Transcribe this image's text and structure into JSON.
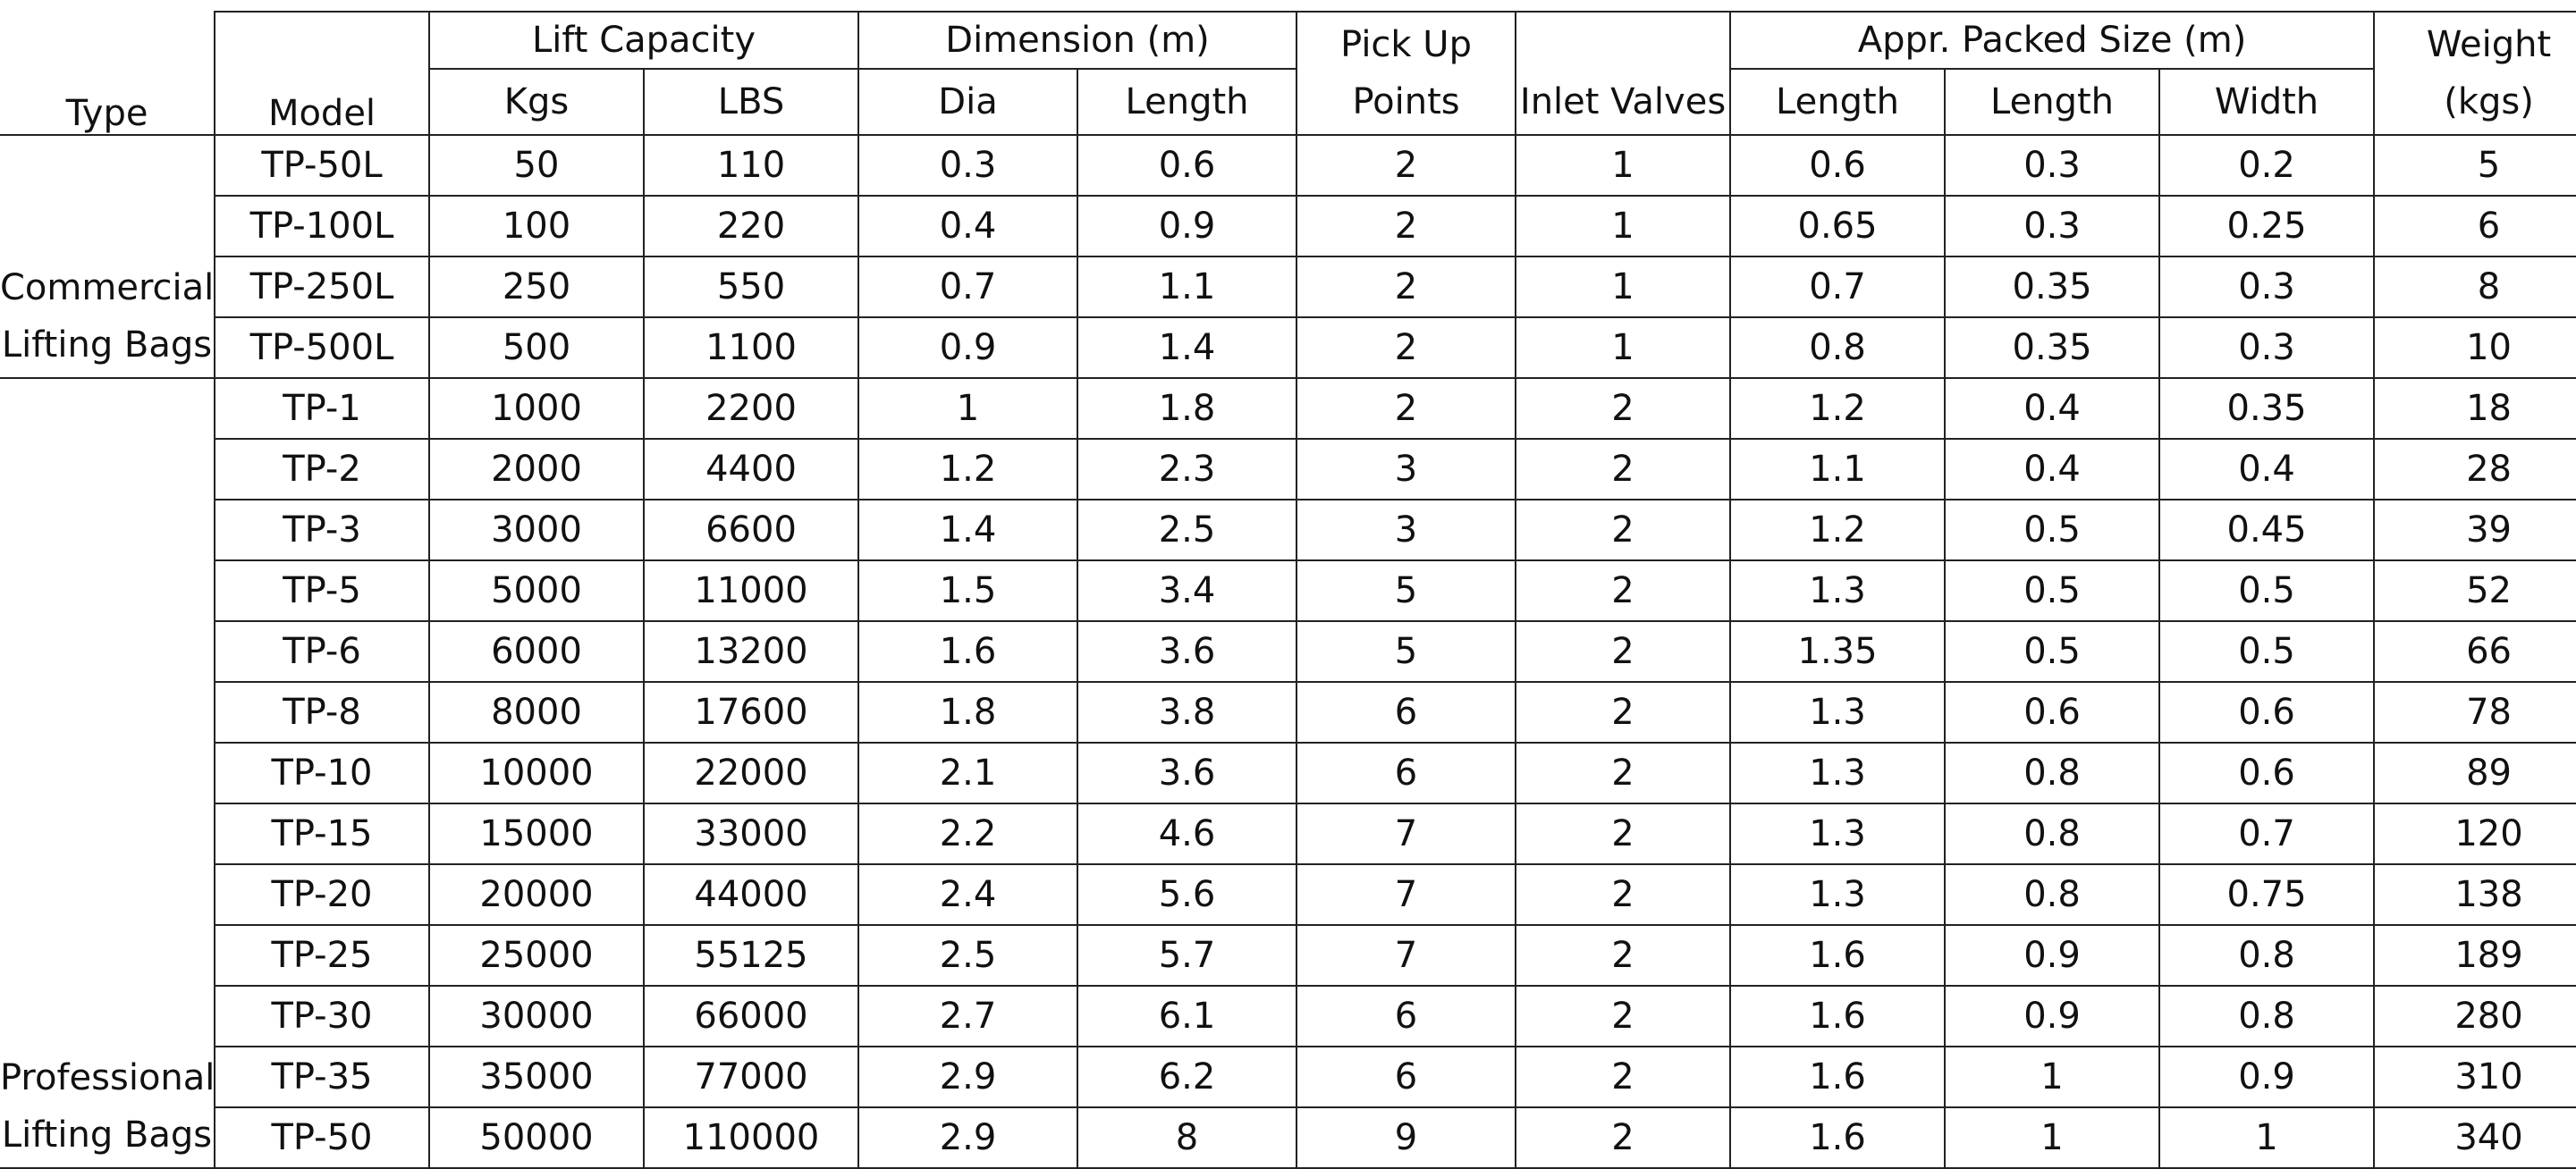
{
  "headers": {
    "type": "Type",
    "model": "Model",
    "lift_capacity": "Lift Capacity",
    "kgs": "Kgs",
    "lbs": "LBS",
    "dimension": "Dimension (m)",
    "dia": "Dia",
    "length": "Length",
    "pickup_line1": "Pick Up",
    "pickup_line2": "Points",
    "inlet_valves": "Inlet Valves",
    "packed_size": "Appr. Packed Size (m)",
    "packed_length1": "Length",
    "packed_length2": "Length",
    "packed_width": "Width",
    "weight_line1": "Weight",
    "weight_line2": "(kgs)"
  },
  "groups": {
    "commercial_line1": "Commercial",
    "commercial_line2": "Lifting Bags",
    "professional_line1": "Professional",
    "professional_line2": "Lifting Bags"
  },
  "rows": [
    [
      "TP-50L",
      "50",
      "110",
      "0.3",
      "0.6",
      "2",
      "1",
      "0.6",
      "0.3",
      "0.2",
      "5"
    ],
    [
      "TP-100L",
      "100",
      "220",
      "0.4",
      "0.9",
      "2",
      "1",
      "0.65",
      "0.3",
      "0.25",
      "6"
    ],
    [
      "TP-250L",
      "250",
      "550",
      "0.7",
      "1.1",
      "2",
      "1",
      "0.7",
      "0.35",
      "0.3",
      "8"
    ],
    [
      "TP-500L",
      "500",
      "1100",
      "0.9",
      "1.4",
      "2",
      "1",
      "0.8",
      "0.35",
      "0.3",
      "10"
    ],
    [
      "TP-1",
      "1000",
      "2200",
      "1",
      "1.8",
      "2",
      "2",
      "1.2",
      "0.4",
      "0.35",
      "18"
    ],
    [
      "TP-2",
      "2000",
      "4400",
      "1.2",
      "2.3",
      "3",
      "2",
      "1.1",
      "0.4",
      "0.4",
      "28"
    ],
    [
      "TP-3",
      "3000",
      "6600",
      "1.4",
      "2.5",
      "3",
      "2",
      "1.2",
      "0.5",
      "0.45",
      "39"
    ],
    [
      "TP-5",
      "5000",
      "11000",
      "1.5",
      "3.4",
      "5",
      "2",
      "1.3",
      "0.5",
      "0.5",
      "52"
    ],
    [
      "TP-6",
      "6000",
      "13200",
      "1.6",
      "3.6",
      "5",
      "2",
      "1.35",
      "0.5",
      "0.5",
      "66"
    ],
    [
      "TP-8",
      "8000",
      "17600",
      "1.8",
      "3.8",
      "6",
      "2",
      "1.3",
      "0.6",
      "0.6",
      "78"
    ],
    [
      "TP-10",
      "10000",
      "22000",
      "2.1",
      "3.6",
      "6",
      "2",
      "1.3",
      "0.8",
      "0.6",
      "89"
    ],
    [
      "TP-15",
      "15000",
      "33000",
      "2.2",
      "4.6",
      "7",
      "2",
      "1.3",
      "0.8",
      "0.7",
      "120"
    ],
    [
      "TP-20",
      "20000",
      "44000",
      "2.4",
      "5.6",
      "7",
      "2",
      "1.3",
      "0.8",
      "0.75",
      "138"
    ],
    [
      "TP-25",
      "25000",
      "55125",
      "2.5",
      "5.7",
      "7",
      "2",
      "1.6",
      "0.9",
      "0.8",
      "189"
    ],
    [
      "TP-30",
      "30000",
      "66000",
      "2.7",
      "6.1",
      "6",
      "2",
      "1.6",
      "0.9",
      "0.8",
      "280"
    ],
    [
      "TP-35",
      "35000",
      "77000",
      "2.9",
      "6.2",
      "6",
      "2",
      "1.6",
      "1",
      "0.9",
      "310"
    ],
    [
      "TP-50",
      "50000",
      "110000",
      "2.9",
      "8",
      "9",
      "2",
      "1.6",
      "1",
      "1",
      "340"
    ]
  ]
}
